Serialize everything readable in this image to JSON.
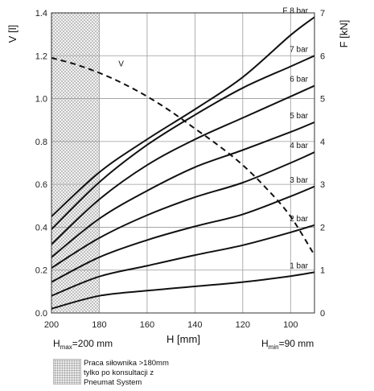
{
  "chart_data": {
    "type": "line",
    "xlabel": "H [mm]",
    "ylabel_left": "V [l]",
    "ylabel_right": "F [kN]",
    "x_ticks": [
      200,
      180,
      160,
      140,
      120,
      100
    ],
    "x_range": [
      200,
      90
    ],
    "x_direction": "reversed",
    "y_left_ticks": [
      "0.0",
      "0.2",
      "0.4",
      "0.6",
      "0.8",
      "1.0",
      "1.2",
      "1.4"
    ],
    "y_left_range": [
      0,
      1.4
    ],
    "y_right_ticks": [
      "0",
      "1",
      "2",
      "3",
      "4",
      "5",
      "6",
      "7"
    ],
    "y_right_range": [
      0,
      7
    ],
    "grid": true,
    "shaded_region": {
      "x_from": 200,
      "x_to": 180,
      "pattern": "dotted"
    },
    "hmax_label": {
      "prefix": "H",
      "sub": "max",
      "text": "=200 mm"
    },
    "hmin_label": {
      "prefix": "H",
      "sub": "min",
      "text": "=90 mm"
    },
    "volume_series": {
      "name": "V",
      "style": "dashed",
      "x": [
        200,
        190,
        180,
        170,
        160,
        150,
        140,
        130,
        120,
        110,
        100,
        90
      ],
      "y": [
        1.19,
        1.16,
        1.12,
        1.07,
        1.01,
        0.94,
        0.86,
        0.78,
        0.69,
        0.58,
        0.45,
        0.27
      ]
    },
    "force_series": [
      {
        "name": "1 bar",
        "x": [
          200,
          180,
          160,
          140,
          120,
          100,
          90
        ],
        "y": [
          0.1,
          0.4,
          0.52,
          0.62,
          0.72,
          0.86,
          0.95
        ]
      },
      {
        "name": "2 bar",
        "x": [
          200,
          180,
          160,
          140,
          120,
          100,
          90
        ],
        "y": [
          0.4,
          0.85,
          1.1,
          1.35,
          1.58,
          1.88,
          2.05
        ]
      },
      {
        "name": "3 bar",
        "x": [
          200,
          180,
          160,
          140,
          120,
          100,
          90
        ],
        "y": [
          0.72,
          1.3,
          1.7,
          2.02,
          2.3,
          2.72,
          2.95
        ]
      },
      {
        "name": "4 bar",
        "x": [
          200,
          180,
          160,
          140,
          120,
          100,
          90
        ],
        "y": [
          1.05,
          1.75,
          2.28,
          2.7,
          3.04,
          3.5,
          3.75
        ]
      },
      {
        "name": "5 bar",
        "x": [
          200,
          180,
          160,
          140,
          120,
          100,
          90
        ],
        "y": [
          1.3,
          2.2,
          2.85,
          3.4,
          3.8,
          4.22,
          4.45
        ]
      },
      {
        "name": "6 bar",
        "x": [
          200,
          180,
          160,
          140,
          120,
          100,
          90
        ],
        "y": [
          1.6,
          2.65,
          3.45,
          4.05,
          4.55,
          5.05,
          5.3
        ]
      },
      {
        "name": "7 bar",
        "x": [
          200,
          180,
          160,
          140,
          120,
          100,
          90
        ],
        "y": [
          1.95,
          3.05,
          3.92,
          4.62,
          5.25,
          5.75,
          6.0
        ]
      },
      {
        "name": "F 8 bar",
        "x": [
          200,
          180,
          160,
          140,
          120,
          100,
          90
        ],
        "y": [
          2.25,
          3.28,
          4.05,
          4.75,
          5.5,
          6.48,
          6.9
        ]
      }
    ]
  },
  "legend": {
    "lines": [
      "Praca siłownika >180mm",
      "tylko po konsultacji z",
      "Pneumat System"
    ]
  },
  "colors": {
    "line": "#111111",
    "grid": "#9a9a9a",
    "axis": "#333333"
  }
}
